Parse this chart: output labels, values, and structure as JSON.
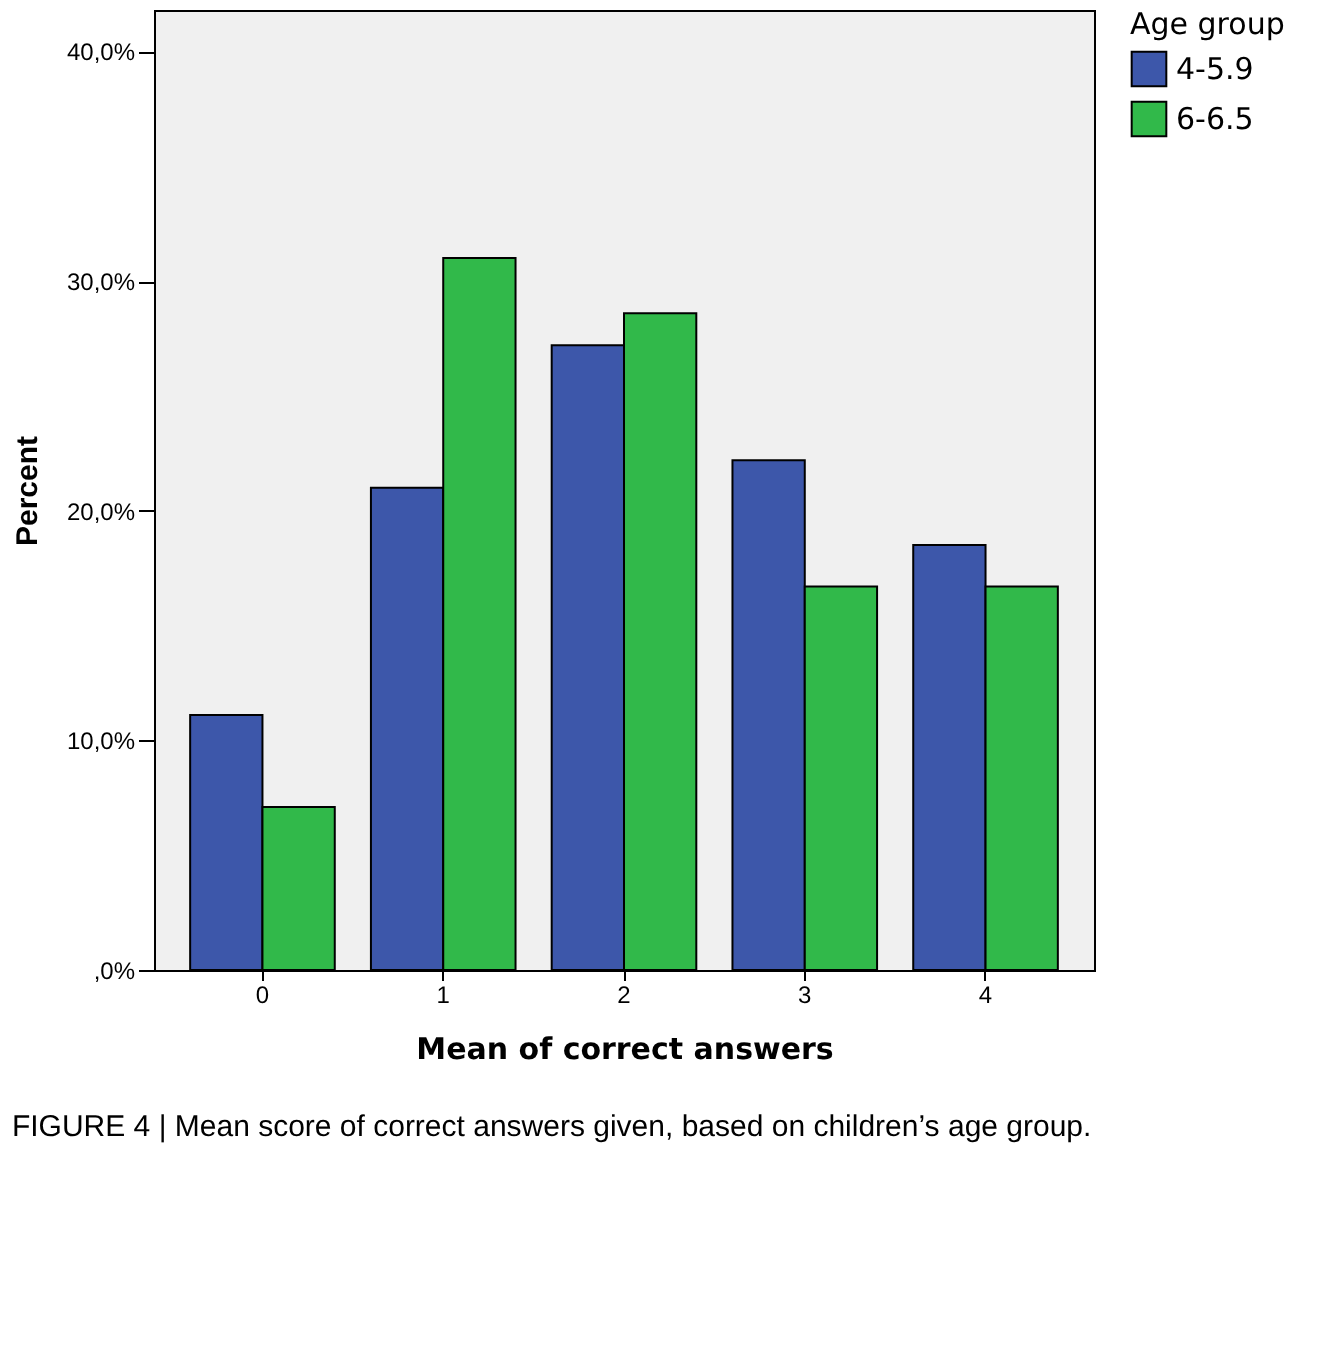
{
  "chart_data": {
    "type": "bar",
    "categories": [
      "0",
      "1",
      "2",
      "3",
      "4"
    ],
    "series": [
      {
        "name": "4-5.9",
        "color": "#3d57aa",
        "values": [
          11.1,
          21.0,
          27.2,
          22.2,
          18.5
        ]
      },
      {
        "name": "6-6.5",
        "color": "#31b94a",
        "values": [
          7.1,
          31.0,
          28.6,
          16.7,
          16.7
        ]
      }
    ],
    "xlabel": "Mean of correct answers",
    "ylabel": "Percent",
    "legend_title": "Age group",
    "ylim": [
      0,
      41.8
    ],
    "yticks": [
      {
        "value": 0,
        "label": ",0%"
      },
      {
        "value": 10,
        "label": "10,0%"
      },
      {
        "value": 20,
        "label": "20,0%"
      },
      {
        "value": 30,
        "label": "30,0%"
      },
      {
        "value": 40,
        "label": "40,0%"
      }
    ],
    "legend": "top right",
    "grid": false,
    "annotations": [
      "FIGURE 4 | Mean score of correct answers given, based on children’s age group."
    ]
  }
}
